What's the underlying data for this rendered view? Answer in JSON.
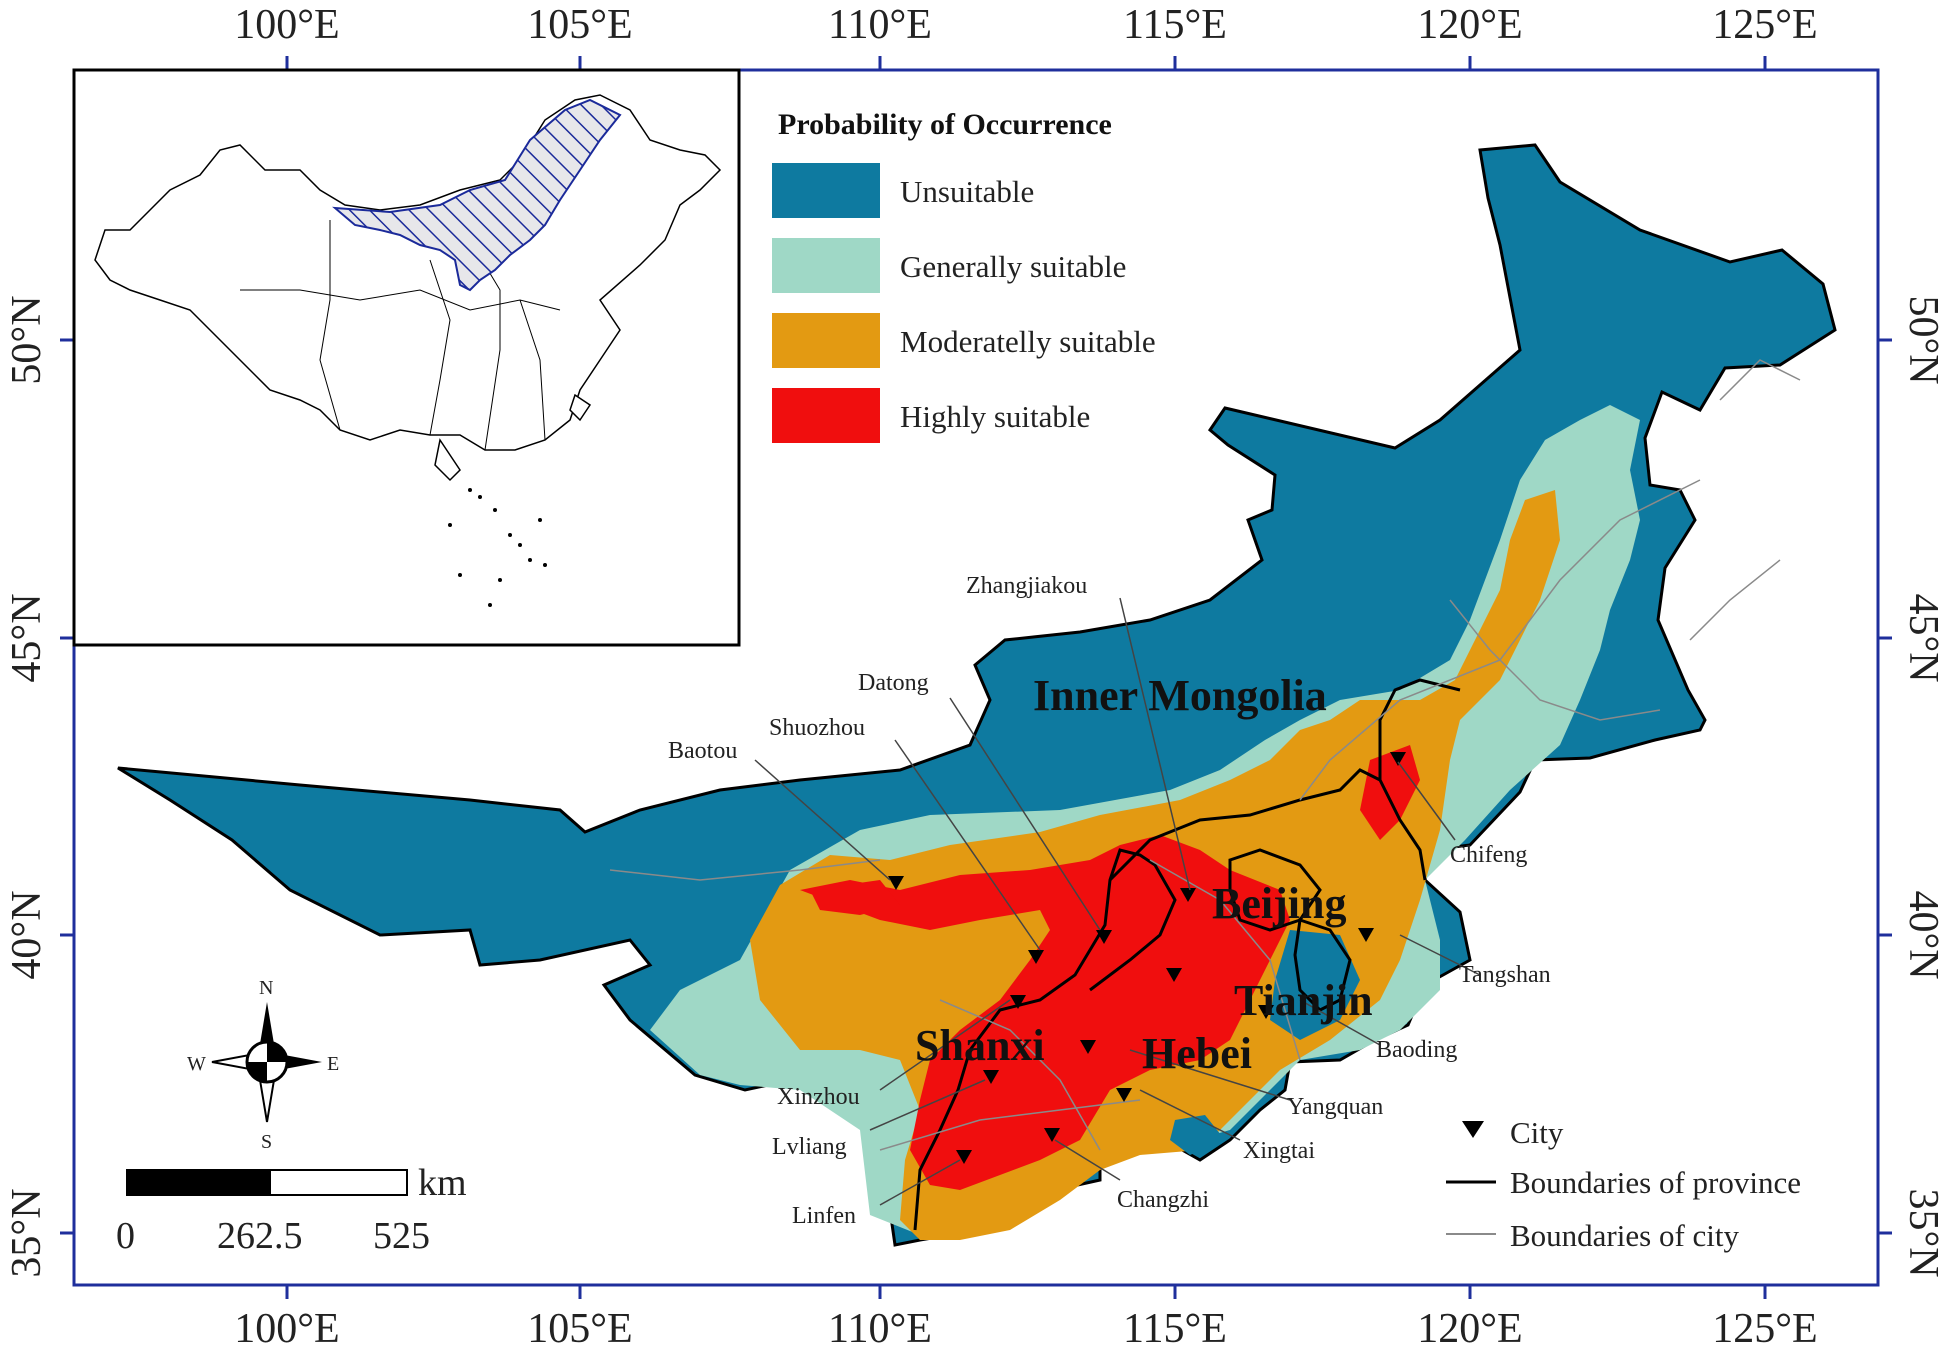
{
  "colors": {
    "frame": "#1f2f9c",
    "unsuitable": "#0e7aa0",
    "generally_suitable": "#9fd8c6",
    "moderately_suitable": "#e39a12",
    "highly_suitable": "#f00e0e",
    "province_boundary": "#000000",
    "city_boundary": "#8a8a8a",
    "inset_hatch": "#1b2a9a"
  },
  "axes": {
    "top_ticks": [
      "100°E",
      "105°E",
      "110°E",
      "115°E",
      "120°E",
      "125°E"
    ],
    "bottom_ticks": [
      "100°E",
      "105°E",
      "110°E",
      "115°E",
      "120°E",
      "125°E"
    ],
    "left_ticks": [
      "50°N",
      "45°N",
      "40°N",
      "35°N"
    ],
    "right_ticks": [
      "50°N",
      "45°N",
      "40°N",
      "35°N"
    ]
  },
  "legend": {
    "title": "Probability of Occurrence",
    "items": [
      {
        "label": "Unsuitable",
        "color_key": "unsuitable"
      },
      {
        "label": "Generally suitable",
        "color_key": "generally_suitable"
      },
      {
        "label": "Moderatelly suitable",
        "color_key": "moderately_suitable"
      },
      {
        "label": "Highly suitable",
        "color_key": "highly_suitable"
      }
    ]
  },
  "provinces": {
    "inner_mongolia": "Inner Mongolia",
    "beijing": "Beijing",
    "tianjin": "Tianjin",
    "shanxi": "Shanxi",
    "hebei": "Hebei"
  },
  "cities": {
    "zhangjiakou": "Zhangjiakou",
    "datong": "Datong",
    "shuozhou": "Shuozhou",
    "baotou": "Baotou",
    "chifeng": "Chifeng",
    "tangshan": "Tangshan",
    "baoding": "Baoding",
    "yangquan": "Yangquan",
    "xingtai": "Xingtai",
    "changzhi": "Changzhi",
    "linfen": "Linfen",
    "lvliang": "Lvliang",
    "xinzhou": "Xinzhou"
  },
  "map_legend": {
    "city": "City",
    "province_boundary": "Boundaries of province",
    "city_boundary": "Boundaries of city"
  },
  "scale_bar": {
    "unit": "km",
    "labels": [
      "0",
      "262.5",
      "525"
    ]
  },
  "compass": {
    "n": "N",
    "s": "S",
    "e": "E",
    "w": "W"
  },
  "icons": {
    "compass": "compass-rose-icon",
    "city_marker": "down-triangle-icon"
  }
}
